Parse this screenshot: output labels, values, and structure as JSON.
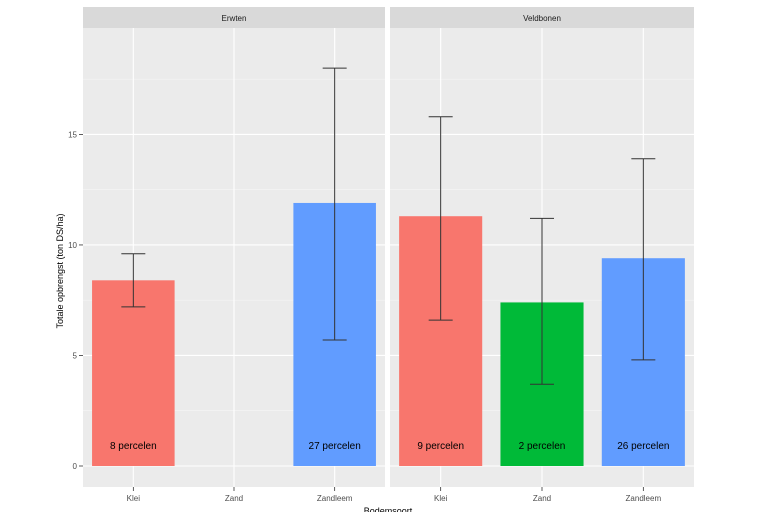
{
  "chart_data": {
    "type": "bar",
    "xlabel": "Bodemsoort",
    "ylabel": "Totale opbrengst (ton DS/ha)",
    "ylim": [
      0,
      19
    ],
    "yticks": [
      0,
      5,
      10,
      15
    ],
    "categories": [
      "Klei",
      "Zand",
      "Zandleem"
    ],
    "colors": {
      "Klei": "#f8766d",
      "Zand": "#00ba38",
      "Zandleem": "#619cff"
    },
    "panels": [
      {
        "title": "Erwten",
        "bars": [
          {
            "category": "Klei",
            "value": 8.4,
            "lower": 7.2,
            "upper": 9.6,
            "label": "8 percelen"
          },
          {
            "category": "Zandleem",
            "value": 11.9,
            "lower": 5.7,
            "upper": 18.0,
            "label": "27 percelen"
          }
        ]
      },
      {
        "title": "Veldbonen",
        "bars": [
          {
            "category": "Klei",
            "value": 11.3,
            "lower": 6.6,
            "upper": 15.8,
            "label": "9 percelen"
          },
          {
            "category": "Zand",
            "value": 7.4,
            "lower": 3.7,
            "upper": 11.2,
            "label": "2 percelen"
          },
          {
            "category": "Zandleem",
            "value": 9.4,
            "lower": 4.8,
            "upper": 13.9,
            "label": "26 percelen"
          }
        ]
      }
    ]
  }
}
